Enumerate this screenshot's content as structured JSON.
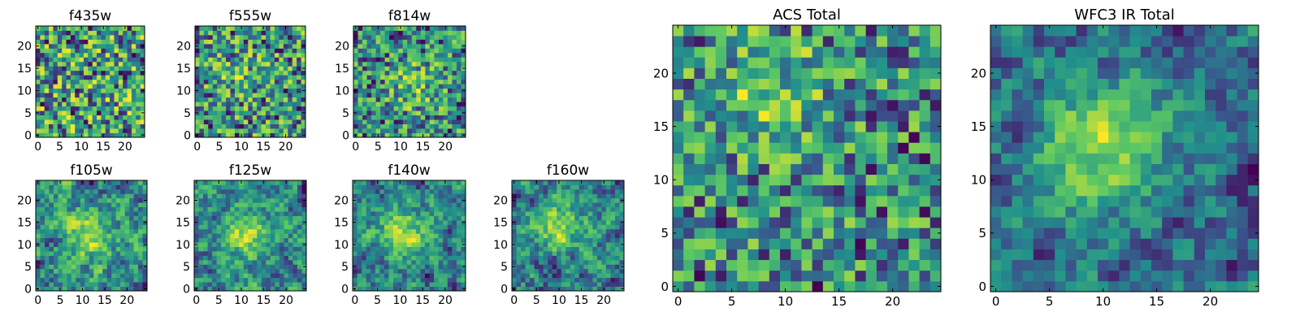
{
  "figure": {
    "colormap": "viridis",
    "colormap_stops": [
      "#440154",
      "#3b528b",
      "#21918c",
      "#5ec962",
      "#fde725"
    ]
  },
  "chart_data": [
    {
      "type": "heatmap",
      "title": "f435w",
      "xlabel": "",
      "ylabel": "",
      "grid_size": 25,
      "xlim": [
        0,
        24
      ],
      "ylim": [
        0,
        24
      ],
      "xticks": [
        "0",
        "5",
        "10",
        "15",
        "20"
      ],
      "yticks": [
        "0",
        "5",
        "10",
        "15",
        "20"
      ],
      "pattern": "noise",
      "center": [
        12,
        12
      ],
      "seed": 11,
      "peak_strength": 0.0
    },
    {
      "type": "heatmap",
      "title": "f555w",
      "xlabel": "",
      "ylabel": "",
      "grid_size": 25,
      "xlim": [
        0,
        24
      ],
      "ylim": [
        0,
        24
      ],
      "xticks": [
        "0",
        "5",
        "10",
        "15",
        "20"
      ],
      "yticks": [
        "0",
        "5",
        "10",
        "15",
        "20"
      ],
      "pattern": "noise",
      "center": [
        10,
        14
      ],
      "seed": 23,
      "peak_strength": 0.15
    },
    {
      "type": "heatmap",
      "title": "f814w",
      "xlabel": "",
      "ylabel": "",
      "grid_size": 25,
      "xlim": [
        0,
        24
      ],
      "ylim": [
        0,
        24
      ],
      "xticks": [
        "0",
        "5",
        "10",
        "15",
        "20"
      ],
      "yticks": [
        "0",
        "5",
        "10",
        "15",
        "20"
      ],
      "pattern": "noise",
      "center": [
        13,
        11
      ],
      "seed": 37,
      "peak_strength": 0.3
    },
    {
      "type": "heatmap",
      "title": "f105w",
      "xlabel": "",
      "ylabel": "",
      "grid_size": 25,
      "xlim": [
        0,
        24
      ],
      "ylim": [
        0,
        24
      ],
      "xticks": [
        "0",
        "5",
        "10",
        "15",
        "20"
      ],
      "yticks": [
        "0",
        "5",
        "10",
        "15",
        "20"
      ],
      "pattern": "smooth",
      "center": [
        12,
        12
      ],
      "seed": 41,
      "peak_strength": 0.4
    },
    {
      "type": "heatmap",
      "title": "f125w",
      "xlabel": "",
      "ylabel": "",
      "grid_size": 25,
      "xlim": [
        0,
        24
      ],
      "ylim": [
        0,
        24
      ],
      "xticks": [
        "0",
        "5",
        "10",
        "15",
        "20"
      ],
      "yticks": [
        "0",
        "5",
        "10",
        "15",
        "20"
      ],
      "pattern": "smooth",
      "center": [
        11,
        12
      ],
      "seed": 53,
      "peak_strength": 0.4
    },
    {
      "type": "heatmap",
      "title": "f140w",
      "xlabel": "",
      "ylabel": "",
      "grid_size": 25,
      "xlim": [
        0,
        24
      ],
      "ylim": [
        0,
        24
      ],
      "xticks": [
        "0",
        "5",
        "10",
        "15",
        "20"
      ],
      "yticks": [
        "0",
        "5",
        "10",
        "15",
        "20"
      ],
      "pattern": "smooth",
      "center": [
        11,
        13
      ],
      "seed": 67,
      "peak_strength": 0.45
    },
    {
      "type": "heatmap",
      "title": "f160w",
      "xlabel": "",
      "ylabel": "",
      "grid_size": 25,
      "xlim": [
        0,
        24
      ],
      "ylim": [
        0,
        24
      ],
      "xticks": [
        "0",
        "5",
        "10",
        "15",
        "20"
      ],
      "yticks": [
        "0",
        "5",
        "10",
        "15",
        "20"
      ],
      "pattern": "smooth",
      "center": [
        10,
        14
      ],
      "seed": 79,
      "peak_strength": 0.5
    },
    {
      "type": "heatmap",
      "title": "ACS Total",
      "xlabel": "",
      "ylabel": "",
      "grid_size": 25,
      "xlim": [
        0,
        24
      ],
      "ylim": [
        0,
        24
      ],
      "xticks": [
        "0",
        "5",
        "10",
        "15",
        "20"
      ],
      "yticks": [
        "0",
        "5",
        "10",
        "15",
        "20"
      ],
      "pattern": "noise",
      "center": [
        9,
        18
      ],
      "seed": 97,
      "peak_strength": 0.35
    },
    {
      "type": "heatmap",
      "title": "WFC3 IR Total",
      "xlabel": "",
      "ylabel": "",
      "grid_size": 25,
      "xlim": [
        0,
        24
      ],
      "ylim": [
        0,
        24
      ],
      "xticks": [
        "0",
        "5",
        "10",
        "15",
        "20"
      ],
      "yticks": [
        "0",
        "5",
        "10",
        "15",
        "20"
      ],
      "pattern": "smooth",
      "center": [
        10,
        13
      ],
      "seed": 113,
      "peak_strength": 0.7
    }
  ]
}
